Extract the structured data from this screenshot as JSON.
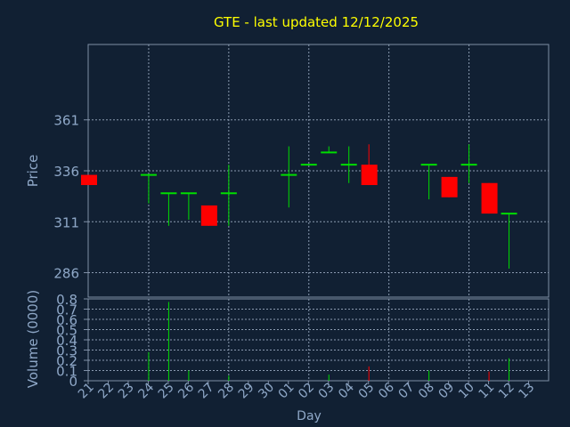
{
  "chart_data": {
    "type": "candlestick",
    "title": "GTE - last updated 12/12/2025",
    "price_panel": {
      "ylabel": "Price",
      "ylim": [
        274,
        398
      ],
      "yticks": [
        286,
        311,
        336,
        361
      ]
    },
    "volume_panel": {
      "ylabel": "Volume (0000)",
      "ylim": [
        0,
        0.8
      ],
      "yticks": [
        0,
        0.1,
        0.2,
        0.3,
        0.4,
        0.5,
        0.6,
        0.7,
        0.8
      ],
      "ytick_labels": [
        "0",
        "0.1",
        "0.2",
        "0.3",
        "0.4",
        "0.5",
        "0.6",
        "0.7",
        "0.8"
      ]
    },
    "xlabel": "Day",
    "x_labels": [
      "21",
      "22",
      "23",
      "24",
      "25",
      "26",
      "27",
      "28",
      "29",
      "30",
      "01",
      "02",
      "03",
      "04",
      "05",
      "06",
      "07",
      "08",
      "09",
      "10",
      "11",
      "12",
      "13"
    ],
    "candles": [
      {
        "day": "21",
        "open": 334,
        "high": 334,
        "low": 329,
        "close": 329,
        "volume": 0.0
      },
      {
        "day": "24",
        "open": 334,
        "high": 334,
        "low": 320,
        "close": 334,
        "volume": 0.28
      },
      {
        "day": "25",
        "open": 325,
        "high": 325,
        "low": 309,
        "close": 325,
        "volume": 0.77
      },
      {
        "day": "26",
        "open": 325,
        "high": 325,
        "low": 312,
        "close": 325,
        "volume": 0.1
      },
      {
        "day": "27",
        "open": 319,
        "high": 319,
        "low": 309,
        "close": 309,
        "volume": 0.0
      },
      {
        "day": "28",
        "open": 325,
        "high": 339,
        "low": 309,
        "close": 325,
        "volume": 0.05
      },
      {
        "day": "01",
        "open": 334,
        "high": 348,
        "low": 318,
        "close": 334,
        "volume": 0.0
      },
      {
        "day": "02",
        "open": 339,
        "high": 339,
        "low": 339,
        "close": 339,
        "volume": 0.0
      },
      {
        "day": "03",
        "open": 345,
        "high": 348,
        "low": 345,
        "close": 345,
        "volume": 0.06
      },
      {
        "day": "04",
        "open": 339,
        "high": 348,
        "low": 330,
        "close": 339,
        "volume": 0.0
      },
      {
        "day": "05",
        "open": 339,
        "high": 349,
        "low": 329,
        "close": 329,
        "volume": 0.14
      },
      {
        "day": "08",
        "open": 339,
        "high": 339,
        "low": 322,
        "close": 339,
        "volume": 0.1
      },
      {
        "day": "09",
        "open": 333,
        "high": 333,
        "low": 323,
        "close": 323,
        "volume": 0.0
      },
      {
        "day": "10",
        "open": 339,
        "high": 349,
        "low": 330,
        "close": 339,
        "volume": 0.0
      },
      {
        "day": "11",
        "open": 330,
        "high": 330,
        "low": 315,
        "close": 315,
        "volume": 0.09
      },
      {
        "day": "12",
        "open": 315,
        "high": 315,
        "low": 288,
        "close": 315,
        "volume": 0.22
      }
    ],
    "colors": {
      "background": "#112033",
      "grid": "#8a9ab0",
      "text": "#8fa8c8",
      "title": "#ffff00",
      "up": "#00dd00",
      "down": "#ff0000",
      "frame": "#7f8fa6"
    }
  }
}
